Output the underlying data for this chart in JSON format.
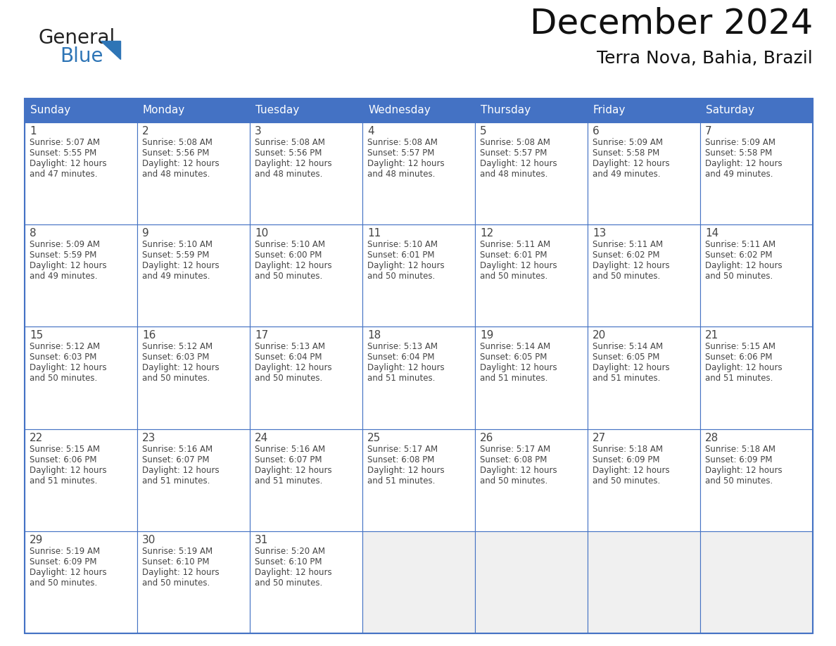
{
  "title": "December 2024",
  "subtitle": "Terra Nova, Bahia, Brazil",
  "header_bg": "#4472C4",
  "header_text_color": "#FFFFFF",
  "day_names": [
    "Sunday",
    "Monday",
    "Tuesday",
    "Wednesday",
    "Thursday",
    "Friday",
    "Saturday"
  ],
  "weeks": [
    [
      {
        "day": "1",
        "sunrise": "5:07 AM",
        "sunset": "5:55 PM",
        "dl1": "Daylight: 12 hours",
        "dl2": "and 47 minutes."
      },
      {
        "day": "2",
        "sunrise": "5:08 AM",
        "sunset": "5:56 PM",
        "dl1": "Daylight: 12 hours",
        "dl2": "and 48 minutes."
      },
      {
        "day": "3",
        "sunrise": "5:08 AM",
        "sunset": "5:56 PM",
        "dl1": "Daylight: 12 hours",
        "dl2": "and 48 minutes."
      },
      {
        "day": "4",
        "sunrise": "5:08 AM",
        "sunset": "5:57 PM",
        "dl1": "Daylight: 12 hours",
        "dl2": "and 48 minutes."
      },
      {
        "day": "5",
        "sunrise": "5:08 AM",
        "sunset": "5:57 PM",
        "dl1": "Daylight: 12 hours",
        "dl2": "and 48 minutes."
      },
      {
        "day": "6",
        "sunrise": "5:09 AM",
        "sunset": "5:58 PM",
        "dl1": "Daylight: 12 hours",
        "dl2": "and 49 minutes."
      },
      {
        "day": "7",
        "sunrise": "5:09 AM",
        "sunset": "5:58 PM",
        "dl1": "Daylight: 12 hours",
        "dl2": "and 49 minutes."
      }
    ],
    [
      {
        "day": "8",
        "sunrise": "5:09 AM",
        "sunset": "5:59 PM",
        "dl1": "Daylight: 12 hours",
        "dl2": "and 49 minutes."
      },
      {
        "day": "9",
        "sunrise": "5:10 AM",
        "sunset": "5:59 PM",
        "dl1": "Daylight: 12 hours",
        "dl2": "and 49 minutes."
      },
      {
        "day": "10",
        "sunrise": "5:10 AM",
        "sunset": "6:00 PM",
        "dl1": "Daylight: 12 hours",
        "dl2": "and 50 minutes."
      },
      {
        "day": "11",
        "sunrise": "5:10 AM",
        "sunset": "6:01 PM",
        "dl1": "Daylight: 12 hours",
        "dl2": "and 50 minutes."
      },
      {
        "day": "12",
        "sunrise": "5:11 AM",
        "sunset": "6:01 PM",
        "dl1": "Daylight: 12 hours",
        "dl2": "and 50 minutes."
      },
      {
        "day": "13",
        "sunrise": "5:11 AM",
        "sunset": "6:02 PM",
        "dl1": "Daylight: 12 hours",
        "dl2": "and 50 minutes."
      },
      {
        "day": "14",
        "sunrise": "5:11 AM",
        "sunset": "6:02 PM",
        "dl1": "Daylight: 12 hours",
        "dl2": "and 50 minutes."
      }
    ],
    [
      {
        "day": "15",
        "sunrise": "5:12 AM",
        "sunset": "6:03 PM",
        "dl1": "Daylight: 12 hours",
        "dl2": "and 50 minutes."
      },
      {
        "day": "16",
        "sunrise": "5:12 AM",
        "sunset": "6:03 PM",
        "dl1": "Daylight: 12 hours",
        "dl2": "and 50 minutes."
      },
      {
        "day": "17",
        "sunrise": "5:13 AM",
        "sunset": "6:04 PM",
        "dl1": "Daylight: 12 hours",
        "dl2": "and 50 minutes."
      },
      {
        "day": "18",
        "sunrise": "5:13 AM",
        "sunset": "6:04 PM",
        "dl1": "Daylight: 12 hours",
        "dl2": "and 51 minutes."
      },
      {
        "day": "19",
        "sunrise": "5:14 AM",
        "sunset": "6:05 PM",
        "dl1": "Daylight: 12 hours",
        "dl2": "and 51 minutes."
      },
      {
        "day": "20",
        "sunrise": "5:14 AM",
        "sunset": "6:05 PM",
        "dl1": "Daylight: 12 hours",
        "dl2": "and 51 minutes."
      },
      {
        "day": "21",
        "sunrise": "5:15 AM",
        "sunset": "6:06 PM",
        "dl1": "Daylight: 12 hours",
        "dl2": "and 51 minutes."
      }
    ],
    [
      {
        "day": "22",
        "sunrise": "5:15 AM",
        "sunset": "6:06 PM",
        "dl1": "Daylight: 12 hours",
        "dl2": "and 51 minutes."
      },
      {
        "day": "23",
        "sunrise": "5:16 AM",
        "sunset": "6:07 PM",
        "dl1": "Daylight: 12 hours",
        "dl2": "and 51 minutes."
      },
      {
        "day": "24",
        "sunrise": "5:16 AM",
        "sunset": "6:07 PM",
        "dl1": "Daylight: 12 hours",
        "dl2": "and 51 minutes."
      },
      {
        "day": "25",
        "sunrise": "5:17 AM",
        "sunset": "6:08 PM",
        "dl1": "Daylight: 12 hours",
        "dl2": "and 51 minutes."
      },
      {
        "day": "26",
        "sunrise": "5:17 AM",
        "sunset": "6:08 PM",
        "dl1": "Daylight: 12 hours",
        "dl2": "and 50 minutes."
      },
      {
        "day": "27",
        "sunrise": "5:18 AM",
        "sunset": "6:09 PM",
        "dl1": "Daylight: 12 hours",
        "dl2": "and 50 minutes."
      },
      {
        "day": "28",
        "sunrise": "5:18 AM",
        "sunset": "6:09 PM",
        "dl1": "Daylight: 12 hours",
        "dl2": "and 50 minutes."
      }
    ],
    [
      {
        "day": "29",
        "sunrise": "5:19 AM",
        "sunset": "6:09 PM",
        "dl1": "Daylight: 12 hours",
        "dl2": "and 50 minutes."
      },
      {
        "day": "30",
        "sunrise": "5:19 AM",
        "sunset": "6:10 PM",
        "dl1": "Daylight: 12 hours",
        "dl2": "and 50 minutes."
      },
      {
        "day": "31",
        "sunrise": "5:20 AM",
        "sunset": "6:10 PM",
        "dl1": "Daylight: 12 hours",
        "dl2": "and 50 minutes."
      },
      null,
      null,
      null,
      null
    ]
  ],
  "fig_bg": "#FFFFFF",
  "cell_bg": "#FFFFFF",
  "cell_text_color": "#444444",
  "grid_color": "#4472C4",
  "logo_general_color": "#222222",
  "logo_blue_color": "#2E75B6",
  "logo_triangle_color": "#2E75B6",
  "title_color": "#111111",
  "subtitle_color": "#111111"
}
